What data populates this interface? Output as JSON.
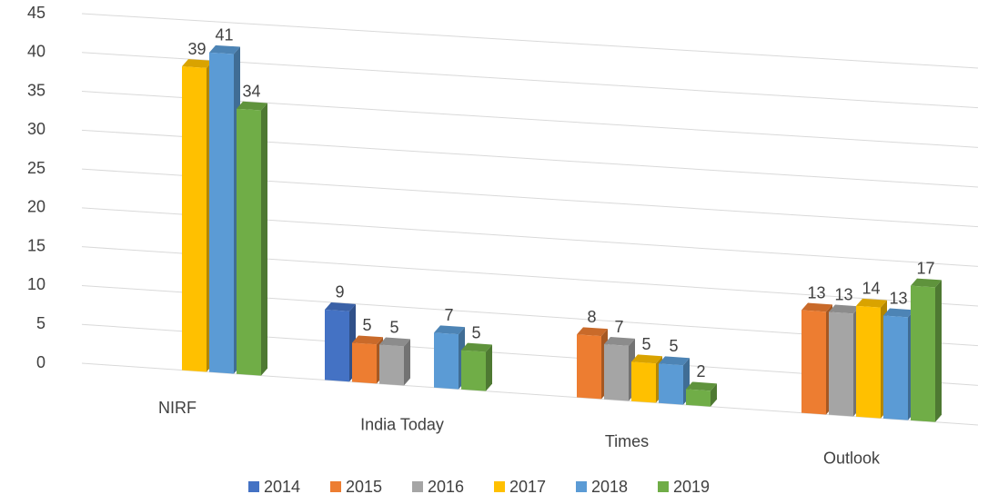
{
  "chart_data": {
    "type": "bar3d",
    "categories": [
      "NIRF",
      "India Today",
      "Times",
      "Outlook"
    ],
    "series": [
      {
        "name": "2014",
        "color": "#4472c4",
        "values": [
          null,
          9,
          null,
          null
        ]
      },
      {
        "name": "2015",
        "color": "#ed7d31",
        "values": [
          null,
          5,
          8,
          13
        ]
      },
      {
        "name": "2016",
        "color": "#a5a5a5",
        "values": [
          null,
          5,
          7,
          13
        ]
      },
      {
        "name": "2017",
        "color": "#ffc000",
        "values": [
          39,
          null,
          5,
          14
        ]
      },
      {
        "name": "2018",
        "color": "#5b9bd5",
        "values": [
          41,
          7,
          5,
          13
        ]
      },
      {
        "name": "2019",
        "color": "#70ad47",
        "values": [
          34,
          5,
          2,
          17
        ]
      }
    ],
    "ylim": [
      0,
      45
    ],
    "yticks": [
      0,
      5,
      10,
      15,
      20,
      25,
      30,
      35,
      40,
      45
    ],
    "grid": true,
    "legend": "bottom"
  }
}
